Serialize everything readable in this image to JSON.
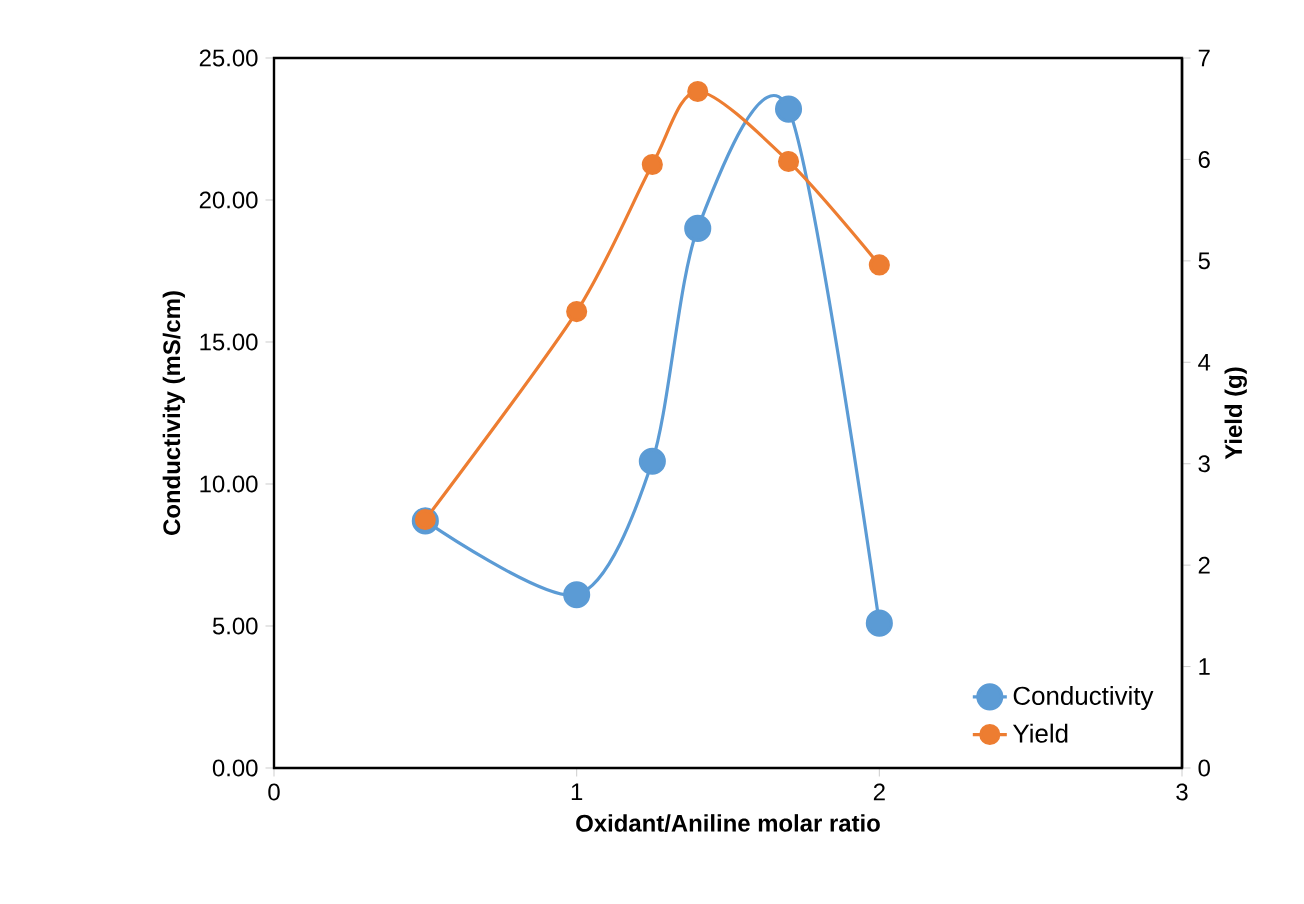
{
  "chart_data": {
    "type": "line",
    "xlabel": "Oxidant/Aniline molar ratio",
    "ylabel": "Conductivity (mS/cm)",
    "y2label": "Yield (g)",
    "x": [
      0.5,
      1,
      1.25,
      1.4,
      1.7,
      2
    ],
    "series": [
      {
        "name": "Conductivity",
        "color": "#5b9bd5",
        "axis": "y",
        "values": [
          8.7,
          6.1,
          10.8,
          19.0,
          23.2,
          5.1
        ]
      },
      {
        "name": "Yield",
        "color": "#ed7d31",
        "axis": "y2",
        "values": [
          2.45,
          4.5,
          5.95,
          6.67,
          5.98,
          4.96
        ]
      }
    ],
    "xlim": [
      0,
      3
    ],
    "xticks": [
      0,
      1,
      2,
      3
    ],
    "ylim": [
      0,
      25
    ],
    "yticks": [
      {
        "value": 0,
        "label": "0.00"
      },
      {
        "value": 5,
        "label": "5.00"
      },
      {
        "value": 10,
        "label": "10.00"
      },
      {
        "value": 15,
        "label": "15.00"
      },
      {
        "value": 20,
        "label": "20.00"
      },
      {
        "value": 25,
        "label": "25.00"
      }
    ],
    "y2lim": [
      0,
      7
    ],
    "y2ticks": [
      0,
      1,
      2,
      3,
      4,
      5,
      6,
      7
    ],
    "marker": "circle",
    "line_style": "solid",
    "legend": "bottom right",
    "grid": false
  }
}
